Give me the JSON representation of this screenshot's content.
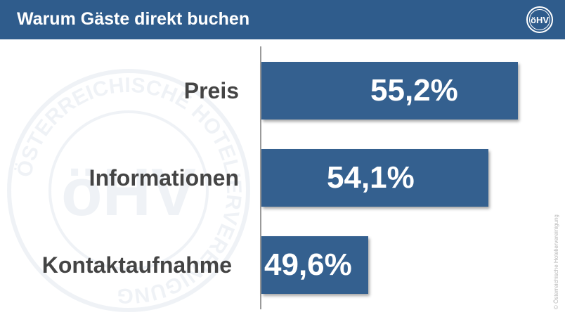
{
  "header": {
    "title": "Warum Gäste direkt buchen",
    "logo_text": "öHV"
  },
  "watermark": {
    "ring_text": "ÖSTERREICHISCHE HOTELIERVEREINIGUNG"
  },
  "copyright": "© Österreichische Hoteliervereinigung",
  "colors": {
    "header_bg": "#2f5c8c",
    "bar": "#34608f",
    "category_text": "#444444",
    "value_text": "#ffffff"
  },
  "chart_data": {
    "type": "bar",
    "orientation": "horizontal",
    "categories": [
      "Preis",
      "Informationen",
      "Kontaktaufnahme"
    ],
    "values": [
      55.2,
      54.1,
      49.6
    ],
    "value_labels": [
      "55,2%",
      "54,1%",
      "49,6%"
    ],
    "unit": "%",
    "title": "Warum Gäste direkt buchen",
    "xlim": [
      49.6,
      55.7
    ],
    "grid": false,
    "legend": "none"
  }
}
